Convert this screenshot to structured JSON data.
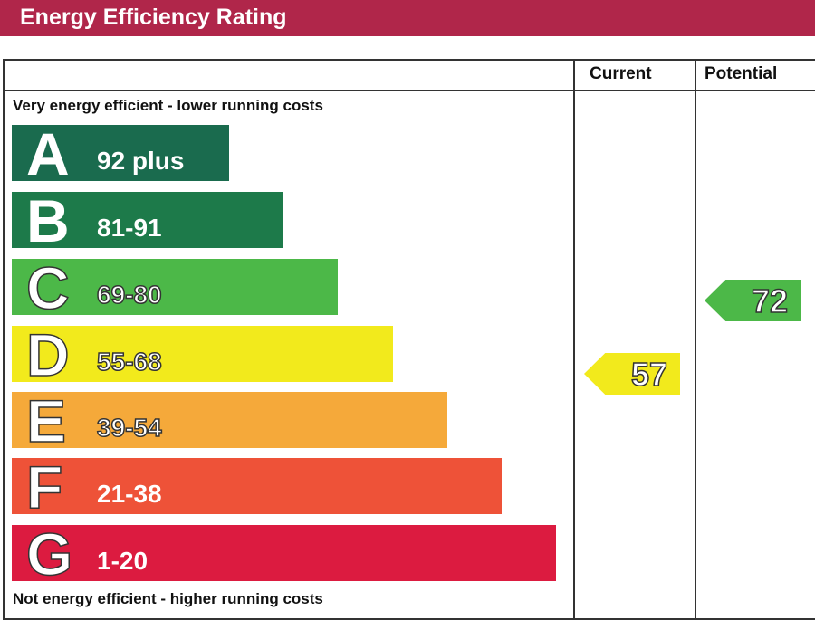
{
  "title": "Energy Efficiency Rating",
  "chart_data": {
    "type": "bar",
    "title": "Energy Efficiency Rating",
    "columns": [
      "Current",
      "Potential"
    ],
    "top_note": "Very energy efficient - lower running costs",
    "bottom_note": "Not energy efficient - higher running costs",
    "bands": [
      {
        "letter": "A",
        "range": "92 plus",
        "min": 92,
        "max": 100,
        "color": "#1a6b4e"
      },
      {
        "letter": "B",
        "range": "81-91",
        "min": 81,
        "max": 91,
        "color": "#1d7a4a"
      },
      {
        "letter": "C",
        "range": "69-80",
        "min": 69,
        "max": 80,
        "color": "#4cb848"
      },
      {
        "letter": "D",
        "range": "55-68",
        "min": 55,
        "max": 68,
        "color": "#f2ea1c"
      },
      {
        "letter": "E",
        "range": "39-54",
        "min": 39,
        "max": 54,
        "color": "#f5a93a"
      },
      {
        "letter": "F",
        "range": "21-38",
        "min": 21,
        "max": 38,
        "color": "#ee5238"
      },
      {
        "letter": "G",
        "range": "1-20",
        "min": 1,
        "max": 20,
        "color": "#dc1b40"
      }
    ],
    "current": {
      "value": 57,
      "band": "D",
      "color": "#f2ea1c"
    },
    "potential": {
      "value": 72,
      "band": "C",
      "color": "#4cb848"
    }
  }
}
